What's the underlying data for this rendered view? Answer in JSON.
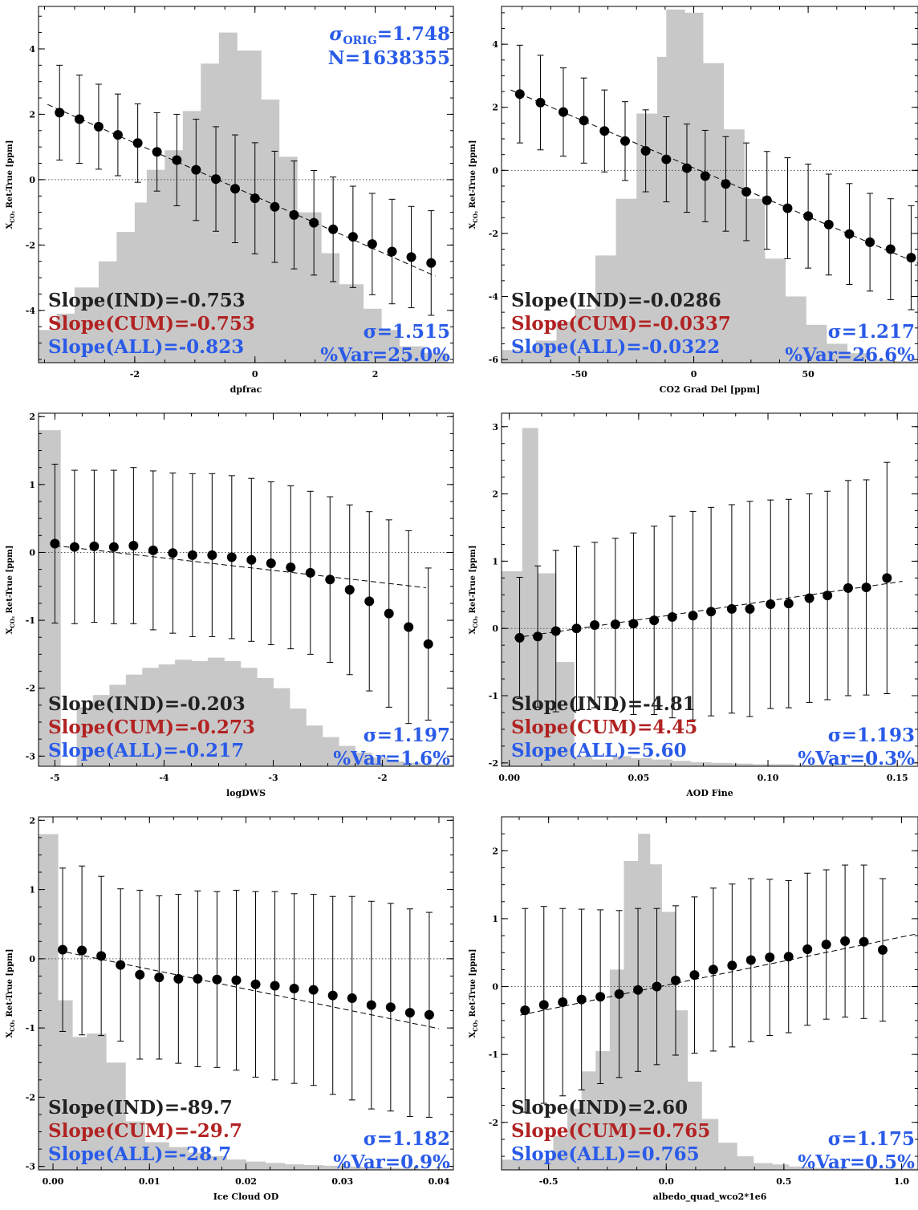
{
  "colors": {
    "ind": "#222222",
    "cum": "#b22222",
    "all": "#2a5be8",
    "sigma": "#2a5be8",
    "hist": "#c8c8c8"
  },
  "chart_data": [
    {
      "type": "scatter",
      "xlabel": "dpfrac",
      "ylabel": "X",
      "ylabel_sub": "CO₂",
      "ylabel_rest": " Ret-True [ppm]",
      "xlim": [
        -3.6,
        3.3
      ],
      "ylim": [
        -5.6,
        5.3
      ],
      "xticks": [
        -2,
        0,
        2
      ],
      "yticks": [
        -4,
        -2,
        0,
        2,
        4
      ],
      "x": [
        -3.25,
        -2.92,
        -2.6,
        -2.28,
        -1.95,
        -1.63,
        -1.3,
        -0.98,
        -0.65,
        -0.33,
        0,
        0.33,
        0.65,
        0.98,
        1.3,
        1.63,
        1.95,
        2.28,
        2.6,
        2.93
      ],
      "y": [
        2.05,
        1.85,
        1.62,
        1.37,
        1.12,
        0.85,
        0.6,
        0.3,
        0.02,
        -0.28,
        -0.57,
        -0.83,
        -1.08,
        -1.32,
        -1.52,
        -1.75,
        -1.97,
        -2.2,
        -2.37,
        -2.55
      ],
      "err": [
        1.45,
        1.35,
        1.3,
        1.25,
        1.2,
        1.2,
        1.4,
        1.55,
        1.6,
        1.65,
        1.7,
        1.7,
        1.65,
        1.6,
        1.6,
        1.55,
        1.55,
        1.6,
        1.55,
        1.6
      ],
      "fit": [
        [
          -3.45,
          2.3
        ],
        [
          3.0,
          -2.95
        ]
      ],
      "hist_edges": [
        -3.6,
        -3.3,
        -3.0,
        -2.6,
        -2.3,
        -2.0,
        -1.8,
        -1.5,
        -1.2,
        -0.9,
        -0.6,
        -0.3,
        0.1,
        0.4,
        0.7,
        1.1,
        1.4,
        1.8,
        2.1,
        2.4,
        2.8,
        3.2
      ],
      "hist_h": [
        -4.6,
        -4.1,
        -3.3,
        -2.5,
        -1.6,
        -0.7,
        0.3,
        0.9,
        2.1,
        3.55,
        4.5,
        3.95,
        2.45,
        0.7,
        -1.0,
        -2.25,
        -3.2,
        -3.95,
        -4.6,
        -5.1,
        -5.3
      ],
      "annotations": {
        "ind": "Slope(IND)=-0.753",
        "cum": "Slope(CUM)=-0.753",
        "all": "Slope(ALL)=-0.823",
        "sigma": "σ=1.515",
        "var": "%Var=25.0%"
      },
      "top_note": {
        "sigma_prefix": "σ",
        "sigma_sub": "ORIG",
        "sigma_val": "=1.748",
        "n": "N=1638355"
      }
    },
    {
      "type": "scatter",
      "xlabel": "CO2 Grad Del [ppm]",
      "ylabel": "X",
      "ylabel_sub": "CO₂",
      "ylabel_rest": " Ret-True [ppm]",
      "xlim": [
        -84,
        98
      ],
      "ylim": [
        -6.1,
        5.2
      ],
      "xticks": [
        -50,
        0,
        50
      ],
      "yticks": [
        -6,
        -4,
        -2,
        0,
        2,
        4
      ],
      "x": [
        -76,
        -67,
        -57,
        -48,
        -39,
        -30,
        -21,
        -12,
        -3,
        5,
        14,
        23,
        32,
        41,
        50,
        59,
        68,
        77,
        86,
        95
      ],
      "y": [
        2.42,
        2.15,
        1.85,
        1.58,
        1.25,
        0.93,
        0.62,
        0.35,
        0.07,
        -0.18,
        -0.43,
        -0.68,
        -0.95,
        -1.2,
        -1.45,
        -1.72,
        -2.02,
        -2.28,
        -2.5,
        -2.77
      ],
      "err": [
        1.55,
        1.5,
        1.4,
        1.35,
        1.3,
        1.25,
        1.3,
        1.35,
        1.4,
        1.45,
        1.5,
        1.55,
        1.55,
        1.6,
        1.65,
        1.6,
        1.6,
        1.55,
        1.6,
        1.65
      ],
      "fit": [
        [
          -80,
          2.55
        ],
        [
          98,
          -2.95
        ]
      ],
      "hist_edges": [
        -84,
        -69,
        -60,
        -52,
        -43,
        -34,
        -25,
        -16,
        -12,
        -4,
        4,
        13,
        22,
        31,
        40,
        49,
        58,
        67,
        76,
        85,
        98
      ],
      "hist_h": [
        -5.7,
        -5.4,
        -4.8,
        -4.4,
        -2.7,
        -0.9,
        1.8,
        3.6,
        5.1,
        5.0,
        3.4,
        1.3,
        -0.9,
        -2.8,
        -4.0,
        -4.9,
        -5.5,
        -5.8,
        -6.0,
        -6.05
      ],
      "annotations": {
        "ind": "Slope(IND)=-0.0286",
        "cum": "Slope(CUM)=-0.0337",
        "all": "Slope(ALL)=-0.0322",
        "sigma": "σ=1.217",
        "var": "%Var=26.6%"
      }
    },
    {
      "type": "scatter",
      "xlabel": "logDWS",
      "ylabel": "X",
      "ylabel_sub": "CO₂",
      "ylabel_rest": " Ret-True [ppm]",
      "xlim": [
        -5.15,
        -1.35
      ],
      "ylim": [
        -3.15,
        2.05
      ],
      "xticks": [
        -5,
        -4,
        -3,
        -2
      ],
      "yticks": [
        -3,
        -2,
        -1,
        0,
        1,
        2
      ],
      "x": [
        -5.0,
        -4.82,
        -4.64,
        -4.46,
        -4.28,
        -4.1,
        -3.92,
        -3.74,
        -3.56,
        -3.38,
        -3.2,
        -3.02,
        -2.84,
        -2.66,
        -2.48,
        -2.3,
        -2.12,
        -1.94,
        -1.76,
        -1.58
      ],
      "y": [
        0.13,
        0.08,
        0.09,
        0.08,
        0.1,
        0.03,
        -0.01,
        -0.04,
        -0.04,
        -0.07,
        -0.11,
        -0.16,
        -0.22,
        -0.3,
        -0.4,
        -0.55,
        -0.72,
        -0.9,
        -1.1,
        -1.35
      ],
      "err": [
        1.17,
        1.13,
        1.12,
        1.13,
        1.15,
        1.17,
        1.18,
        1.2,
        1.2,
        1.2,
        1.2,
        1.2,
        1.2,
        1.2,
        1.22,
        1.25,
        1.32,
        1.38,
        1.42,
        1.12
      ],
      "fit": [
        [
          -5.0,
          0.1
        ],
        [
          -1.6,
          -0.52
        ]
      ],
      "hist_edges": [
        -5.15,
        -4.95,
        -4.8,
        -4.65,
        -4.5,
        -4.35,
        -4.2,
        -4.05,
        -3.9,
        -3.75,
        -3.6,
        -3.45,
        -3.3,
        -3.15,
        -3.0,
        -2.85,
        -2.7,
        -2.55,
        -2.4,
        -2.25,
        -2.1,
        -1.95,
        -1.8,
        -1.65,
        -1.5,
        -1.35
      ],
      "hist_h": [
        1.8,
        -3.15,
        -2.28,
        -2.1,
        -1.95,
        -1.8,
        -1.7,
        -1.65,
        -1.58,
        -1.6,
        -1.55,
        -1.6,
        -1.7,
        -1.85,
        -2.0,
        -2.3,
        -2.55,
        -2.72,
        -2.85,
        -2.95,
        -3.02,
        -3.08,
        -3.1,
        -3.12,
        -3.12
      ],
      "annotations": {
        "ind": "Slope(IND)=-0.203",
        "cum": "Slope(CUM)=-0.273",
        "all": "Slope(ALL)=-0.217",
        "sigma": "σ=1.197",
        "var": "%Var=1.6%"
      }
    },
    {
      "type": "scatter",
      "xlabel": "AOD Fine",
      "ylabel": "X",
      "ylabel_sub": "CO₂",
      "ylabel_rest": " Ret-True [ppm]",
      "xlim": [
        -0.003,
        0.158
      ],
      "ylim": [
        -2.05,
        3.2
      ],
      "xticks": [
        0.0,
        0.05,
        0.1,
        0.15
      ],
      "xtick_labels": [
        "0.00",
        "0.05",
        "0.10",
        "0.15"
      ],
      "yticks": [
        -2,
        -1,
        0,
        1,
        2,
        3
      ],
      "x": [
        0.004,
        0.011,
        0.018,
        0.026,
        0.033,
        0.041,
        0.048,
        0.056,
        0.063,
        0.071,
        0.078,
        0.086,
        0.093,
        0.101,
        0.108,
        0.116,
        0.123,
        0.131,
        0.138,
        0.146
      ],
      "y": [
        -0.14,
        -0.12,
        -0.04,
        0.0,
        0.05,
        0.06,
        0.07,
        0.12,
        0.17,
        0.19,
        0.25,
        0.29,
        0.29,
        0.36,
        0.37,
        0.45,
        0.49,
        0.6,
        0.61,
        0.75
      ],
      "err": [
        0.9,
        1.05,
        1.2,
        1.22,
        1.23,
        1.28,
        1.35,
        1.4,
        1.5,
        1.55,
        1.55,
        1.55,
        1.6,
        1.55,
        1.55,
        1.55,
        1.55,
        1.6,
        1.6,
        1.72
      ],
      "fit": [
        [
          0.002,
          -0.14
        ],
        [
          0.152,
          0.7
        ]
      ],
      "hist_edges": [
        -0.003,
        0.005,
        0.011,
        0.018,
        0.025,
        0.032,
        0.04,
        0.047,
        0.055,
        0.063,
        0.07,
        0.078,
        0.086,
        0.094,
        0.102,
        0.11,
        0.118,
        0.126,
        0.134,
        0.142,
        0.158
      ],
      "hist_h": [
        0.85,
        2.98,
        0.82,
        -0.5,
        -1.9,
        -1.95,
        -1.9,
        -1.93,
        -1.95,
        -1.97,
        -1.99,
        -2.0,
        -2.01,
        -2.02,
        -2.02,
        -2.03,
        -2.03,
        -2.04,
        -2.04,
        -2.05
      ],
      "annotations": {
        "ind": "Slope(IND)=-4.81",
        "cum": "Slope(CUM)=4.45",
        "all": "Slope(ALL)=5.60",
        "sigma": "σ=1.193",
        "var": "%Var=0.3%"
      }
    },
    {
      "type": "scatter",
      "xlabel": "Ice Cloud OD",
      "ylabel": "X",
      "ylabel_sub": "CO₂",
      "ylabel_rest": " Ret-True [ppm]",
      "xlim": [
        -0.0015,
        0.0415
      ],
      "ylim": [
        -3.05,
        2.05
      ],
      "xticks": [
        0.0,
        0.01,
        0.02,
        0.03,
        0.04
      ],
      "xtick_labels": [
        "0.00",
        "0.01",
        "0.02",
        "0.03",
        "0.04"
      ],
      "yticks": [
        -3,
        -2,
        -1,
        0,
        1,
        2
      ],
      "x": [
        0.001,
        0.003,
        0.005,
        0.007,
        0.009,
        0.011,
        0.013,
        0.015,
        0.017,
        0.019,
        0.021,
        0.023,
        0.025,
        0.027,
        0.029,
        0.031,
        0.033,
        0.035,
        0.037,
        0.039
      ],
      "y": [
        0.13,
        0.12,
        0.04,
        -0.09,
        -0.23,
        -0.27,
        -0.29,
        -0.29,
        -0.3,
        -0.31,
        -0.37,
        -0.39,
        -0.43,
        -0.45,
        -0.53,
        -0.57,
        -0.67,
        -0.7,
        -0.78,
        -0.81
      ],
      "err": [
        1.18,
        1.22,
        1.15,
        1.1,
        1.22,
        1.18,
        1.22,
        1.27,
        1.27,
        1.3,
        1.34,
        1.36,
        1.37,
        1.38,
        1.43,
        1.47,
        1.5,
        1.5,
        1.5,
        1.48
      ],
      "fit": [
        [
          0.0005,
          0.12
        ],
        [
          0.04,
          -1.01
        ]
      ],
      "hist_edges": [
        -0.0015,
        0.0005,
        0.002,
        0.0035,
        0.0055,
        0.0075,
        0.0095,
        0.012,
        0.014,
        0.016,
        0.018,
        0.02,
        0.022,
        0.024,
        0.026,
        0.028,
        0.03,
        0.032,
        0.034,
        0.036,
        0.038,
        0.0415
      ],
      "hist_h": [
        1.8,
        -0.6,
        -1.13,
        -1.08,
        -1.5,
        -2.35,
        -2.65,
        -2.72,
        -2.8,
        -2.85,
        -2.9,
        -2.93,
        -2.95,
        -2.97,
        -2.98,
        -2.99,
        -3.0,
        -3.01,
        -3.02,
        -3.03,
        -3.04
      ],
      "annotations": {
        "ind": "Slope(IND)=-89.7",
        "cum": "Slope(CUM)=-29.7",
        "all": "Slope(ALL)=-28.7",
        "sigma": "σ=1.182",
        "var": "%Var=0.9%"
      }
    },
    {
      "type": "scatter",
      "xlabel": "albedo_quad_wco2*1e6",
      "ylabel": "X",
      "ylabel_sub": "CO₂",
      "ylabel_rest": " Ret-True [ppm]",
      "xlim": [
        -0.7,
        1.07
      ],
      "ylim": [
        -2.7,
        2.5
      ],
      "xticks": [
        -0.5,
        0.0,
        0.5,
        1.0
      ],
      "xtick_labels": [
        "-0.5",
        "0.0",
        "0.5",
        "1.0"
      ],
      "yticks": [
        -2,
        -1,
        0,
        1,
        2
      ],
      "x": [
        -0.6,
        -0.52,
        -0.44,
        -0.36,
        -0.28,
        -0.2,
        -0.12,
        -0.04,
        0.04,
        0.12,
        0.2,
        0.28,
        0.36,
        0.44,
        0.52,
        0.6,
        0.68,
        0.76,
        0.84,
        0.92
      ],
      "y": [
        -0.35,
        -0.27,
        -0.23,
        -0.19,
        -0.15,
        -0.11,
        -0.05,
        0.0,
        0.09,
        0.17,
        0.25,
        0.31,
        0.39,
        0.43,
        0.44,
        0.55,
        0.62,
        0.67,
        0.66,
        0.54
      ],
      "err": [
        1.5,
        1.45,
        1.38,
        1.33,
        1.28,
        1.23,
        1.2,
        1.15,
        1.1,
        1.15,
        1.2,
        1.2,
        1.2,
        1.15,
        1.12,
        1.12,
        1.1,
        1.12,
        1.13,
        1.05
      ],
      "fit": [
        [
          -0.62,
          -0.42
        ],
        [
          1.07,
          0.78
        ]
      ],
      "hist_edges": [
        -0.7,
        -0.48,
        -0.42,
        -0.36,
        -0.3,
        -0.24,
        -0.18,
        -0.12,
        -0.07,
        -0.02,
        0.04,
        0.09,
        0.15,
        0.22,
        0.3,
        0.37,
        0.45,
        0.52,
        0.6,
        0.7,
        1.07
      ],
      "hist_h": [
        -2.55,
        -2.2,
        -1.8,
        -1.25,
        -0.95,
        0.25,
        1.85,
        2.25,
        1.8,
        1.1,
        -0.35,
        -1.4,
        -1.95,
        -2.3,
        -2.5,
        -2.6,
        -2.62,
        -2.65,
        -2.67,
        -2.68
      ],
      "annotations": {
        "ind": "Slope(IND)=2.60",
        "cum": "Slope(CUM)=0.765",
        "all": "Slope(ALL)=0.765",
        "sigma": "σ=1.175",
        "var": "%Var=0.5%"
      }
    }
  ]
}
